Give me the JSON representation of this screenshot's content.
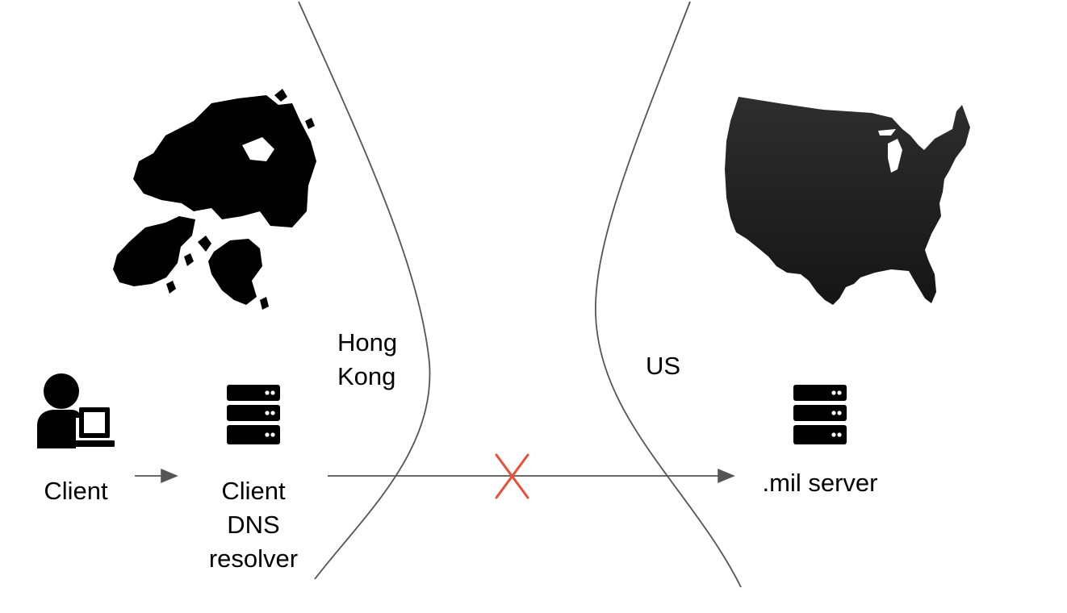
{
  "regions": {
    "left": {
      "label_line1": "Hong",
      "label_line2": "Kong"
    },
    "right": {
      "label": "US"
    }
  },
  "nodes": {
    "client": {
      "label": "Client",
      "icon": "user-laptop-icon"
    },
    "resolver": {
      "label_line1": "Client",
      "label_line2": "DNS",
      "label_line3": "resolver",
      "icon": "server-stack-icon"
    },
    "mil_server": {
      "label": ".mil server",
      "icon": "server-stack-icon"
    }
  },
  "maps": {
    "left": "hong-kong-map",
    "right": "usa-map"
  },
  "connections": {
    "blocked_marker": "blocked-x-icon",
    "blocked_color": "#e8503a",
    "line_color": "#555555"
  }
}
